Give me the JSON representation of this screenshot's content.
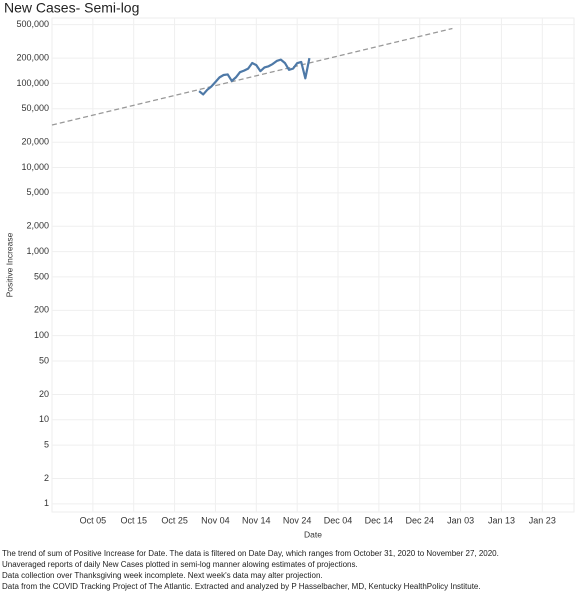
{
  "chart_data": {
    "type": "line",
    "title": "New Cases- Semi-log",
    "x_label": "Date",
    "y_label": "Positive Increase",
    "x": [
      "10-31",
      "11-01",
      "11-02",
      "11-03",
      "11-04",
      "11-05",
      "11-06",
      "11-07",
      "11-08",
      "11-09",
      "11-10",
      "11-11",
      "11-12",
      "11-13",
      "11-14",
      "11-15",
      "11-16",
      "11-17",
      "11-18",
      "11-19",
      "11-20",
      "11-21",
      "11-22",
      "11-23",
      "11-24",
      "11-25",
      "11-26",
      "11-27"
    ],
    "series": [
      {
        "color": "#4e79a7",
        "values": [
          81000,
          74000,
          84000,
          92000,
          104000,
          118000,
          126000,
          128000,
          107000,
          118000,
          136000,
          142000,
          150000,
          175000,
          165000,
          140000,
          155000,
          160000,
          170000,
          185000,
          192000,
          175000,
          145000,
          150000,
          174000,
          180000,
          115000,
          200000
        ]
      }
    ],
    "trend": {
      "x": [
        "09-25",
        "01-01"
      ],
      "values": [
        32000,
        450000
      ],
      "color": "#999999"
    },
    "log_y": true,
    "grid": true,
    "xlim": [
      "09-25",
      "01-31"
    ],
    "xticks": [
      {
        "value": "10-05",
        "label": "Oct 05"
      },
      {
        "value": "10-15",
        "label": "Oct 15"
      },
      {
        "value": "10-25",
        "label": "Oct 25"
      },
      {
        "value": "11-04",
        "label": "Nov 04"
      },
      {
        "value": "11-14",
        "label": "Nov 14"
      },
      {
        "value": "11-24",
        "label": "Nov 24"
      },
      {
        "value": "12-04",
        "label": "Dec 04"
      },
      {
        "value": "12-14",
        "label": "Dec 14"
      },
      {
        "value": "12-24",
        "label": "Dec 24"
      },
      {
        "value": "01-03",
        "label": "Jan 03"
      },
      {
        "value": "01-13",
        "label": "Jan 13"
      },
      {
        "value": "01-23",
        "label": "Jan 23"
      }
    ],
    "ylim": [
      0.8,
      600000
    ],
    "yticks": [
      1,
      2,
      5,
      10,
      20,
      50,
      100,
      200,
      500,
      {
        "value": 1000,
        "label": "1,000"
      },
      {
        "value": 2000,
        "label": "2,000"
      },
      {
        "value": 5000,
        "label": "5,000"
      },
      {
        "value": 10000,
        "label": "10,000"
      },
      {
        "value": 20000,
        "label": "20,000"
      },
      {
        "value": 50000,
        "label": "50,000"
      },
      {
        "value": 100000,
        "label": "100,000"
      },
      {
        "value": 200000,
        "label": "200,000"
      },
      {
        "value": 500000,
        "label": "500,000"
      }
    ],
    "notes": [
      "The trend of sum of Positive Increase for Date. The data is filtered on Date Day, which ranges from October 31, 2020 to November 27, 2020.",
      "Unaveraged reports of daily New Cases plotted in semi-log manner alowing estimates of projections.",
      "Data collection over Thanksgiving week incomplete. Next week's data may alter projection.",
      "Data from the COVID Tracking Project of The Atlantic.  Extracted and analyzed by P Hasselbacher, MD, Kentucky HealthPolicy Institute."
    ]
  }
}
